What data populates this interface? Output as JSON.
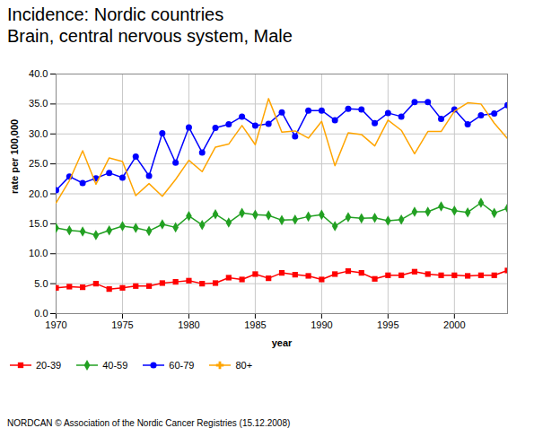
{
  "chart_data": {
    "type": "line",
    "title": "Incidence: Nordic countries",
    "subtitle": "Brain, central nervous system, Male",
    "x_label": "year",
    "y_label": "rate per 100,000",
    "caption": "NORDCAN © Association of the Nordic Cancer Registries (15.12.2008)",
    "x": [
      1970,
      1971,
      1972,
      1973,
      1974,
      1975,
      1976,
      1977,
      1978,
      1979,
      1980,
      1981,
      1982,
      1983,
      1984,
      1985,
      1986,
      1987,
      1988,
      1989,
      1990,
      1991,
      1992,
      1993,
      1994,
      1995,
      1996,
      1997,
      1998,
      1999,
      2000,
      2001,
      2002,
      2003,
      2004
    ],
    "xlim": [
      1970,
      2004
    ],
    "xticks": [
      1970,
      1975,
      1980,
      1985,
      1990,
      1995,
      2000
    ],
    "ylim": [
      0,
      40
    ],
    "yticks": [
      {
        "value": 0,
        "label": "0.0"
      },
      {
        "value": 5,
        "label": "5.0"
      },
      {
        "value": 10,
        "label": "10.0"
      },
      {
        "value": 15,
        "label": "15.0"
      },
      {
        "value": 20,
        "label": "20.0"
      },
      {
        "value": 25,
        "label": "25.0"
      },
      {
        "value": 30,
        "label": "30.0"
      },
      {
        "value": 35,
        "label": "35.0"
      },
      {
        "value": 40,
        "label": "40.0"
      }
    ],
    "grid": true,
    "legend": "bottom",
    "series": [
      {
        "name": "20-39",
        "color": "#ff0000",
        "marker": "square",
        "values": [
          4.3,
          4.5,
          4.4,
          5.0,
          4.1,
          4.3,
          4.6,
          4.6,
          5.1,
          5.3,
          5.5,
          5.0,
          5.1,
          6.0,
          5.7,
          6.6,
          5.9,
          6.8,
          6.5,
          6.3,
          5.7,
          6.6,
          7.1,
          6.8,
          5.8,
          6.4,
          6.4,
          7.0,
          6.6,
          6.4,
          6.4,
          6.3,
          6.4,
          6.4,
          7.2
        ]
      },
      {
        "name": "40-59",
        "color": "#22a022",
        "marker": "diamond",
        "values": [
          14.3,
          13.9,
          13.7,
          13.1,
          13.9,
          14.6,
          14.3,
          13.8,
          14.9,
          14.4,
          16.3,
          14.8,
          16.6,
          15.2,
          16.8,
          16.5,
          16.4,
          15.6,
          15.7,
          16.2,
          16.5,
          14.6,
          16.1,
          15.9,
          16.0,
          15.5,
          15.7,
          17.0,
          17.0,
          17.9,
          17.2,
          16.9,
          18.5,
          16.8,
          17.6
        ]
      },
      {
        "name": "60-79",
        "color": "#0000ff",
        "marker": "circle",
        "values": [
          20.6,
          22.9,
          21.8,
          22.6,
          23.5,
          22.7,
          26.2,
          23.0,
          30.1,
          25.2,
          31.1,
          26.9,
          31.0,
          31.6,
          32.9,
          31.4,
          31.7,
          33.6,
          29.6,
          33.9,
          33.9,
          32.3,
          34.2,
          34.1,
          31.8,
          33.5,
          32.9,
          35.3,
          35.3,
          32.5,
          34.1,
          31.6,
          33.1,
          33.4,
          34.8
        ]
      },
      {
        "name": "80+",
        "color": "#ffa500",
        "marker": "plus",
        "values": [
          18.5,
          22.2,
          27.2,
          21.6,
          26.0,
          25.4,
          19.7,
          21.7,
          19.6,
          22.4,
          25.6,
          23.7,
          27.8,
          28.3,
          31.4,
          28.2,
          35.9,
          30.3,
          30.5,
          29.3,
          32.1,
          24.7,
          30.2,
          29.9,
          28.0,
          32.3,
          30.6,
          26.7,
          30.4,
          30.4,
          33.8,
          35.2,
          35.0,
          31.8,
          29.2
        ]
      }
    ]
  }
}
